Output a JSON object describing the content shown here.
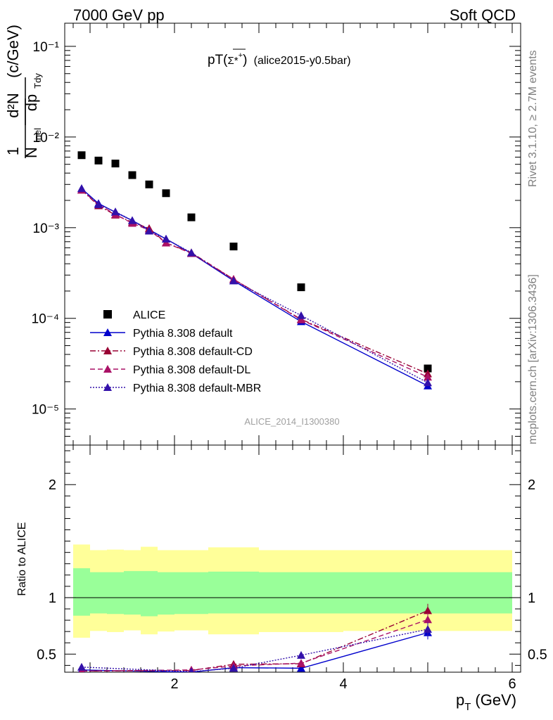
{
  "header": {
    "left": "7000 GeV pp",
    "right": "Soft QCD"
  },
  "side_labels": {
    "rivet": "Rivet 3.1.10, ≥ 2.7M events",
    "mcplots": "mcplots.cern.ch [arXiv:1306.3436]"
  },
  "chart_data": [
    {
      "type": "scatter",
      "panel": "main",
      "title_main": "pT(",
      "title_particle": "Σ*",
      "title_sup": "+",
      "title_close": ")",
      "title_extra": "(alice2015-y0.5bar)",
      "watermark": "ALICE_2014_I1300380",
      "ylabel": "1/N_inel d²N/dp_T dy (c/GeV)",
      "ylabel_parts": {
        "one": "1",
        "n": "N",
        "inel": "inel",
        "d2n": "d²N",
        "dp": "dp",
        "tdy": "Tdy",
        "unit": "(c/GeV)"
      },
      "yscale": "log",
      "ylim": [
        4e-06,
        0.18
      ],
      "xlim": [
        0.7,
        6.1
      ],
      "y_tick_labels": [
        "10⁻⁵",
        "10⁻⁴",
        "10⁻³",
        "10⁻²",
        "10⁻¹"
      ],
      "legend_position": "lower-left",
      "series": [
        {
          "name": "ALICE",
          "color": "#000000",
          "marker": "square",
          "line": "none",
          "x": [
            0.9,
            1.1,
            1.3,
            1.5,
            1.7,
            1.9,
            2.2,
            2.7,
            3.5,
            5.0
          ],
          "y": [
            0.0063,
            0.0055,
            0.0051,
            0.0038,
            0.003,
            0.0024,
            0.0013,
            0.00062,
            0.00022,
            2.8e-05
          ]
        },
        {
          "name": "Pythia 8.308 default",
          "color": "#0000cc",
          "marker": "triangle",
          "line": "solid",
          "x": [
            0.9,
            1.1,
            1.3,
            1.5,
            1.7,
            1.9,
            2.2,
            2.7,
            3.5,
            5.0
          ],
          "y": [
            0.0027,
            0.00185,
            0.00148,
            0.0012,
            0.00095,
            0.00075,
            0.00052,
            0.00026,
            9.2e-05,
            1.8e-05
          ]
        },
        {
          "name": "Pythia 8.308 default-CD",
          "color": "#990033",
          "marker": "triangle",
          "line": "dashdot",
          "x": [
            0.9,
            1.1,
            1.3,
            1.5,
            1.7,
            1.9,
            2.2,
            2.7,
            3.5,
            5.0
          ],
          "y": [
            0.0026,
            0.00175,
            0.00138,
            0.00115,
            0.00098,
            0.00068,
            0.00053,
            0.00027,
            9.75e-05,
            2.45e-05
          ]
        },
        {
          "name": "Pythia 8.308 default-DL",
          "color": "#aa1166",
          "marker": "triangle",
          "line": "dashed",
          "x": [
            0.9,
            1.1,
            1.3,
            1.5,
            1.7,
            1.9,
            2.2,
            2.7,
            3.5,
            5.0
          ],
          "y": [
            0.0026,
            0.0018,
            0.0014,
            0.00112,
            0.00094,
            0.00068,
            0.00052,
            0.00027,
            9.65e-05,
            2.25e-05
          ]
        },
        {
          "name": "Pythia 8.308 default-MBR",
          "color": "#3311aa",
          "marker": "triangle",
          "line": "dotted",
          "x": [
            0.9,
            1.1,
            1.3,
            1.5,
            1.7,
            1.9,
            2.2,
            2.7,
            3.5,
            5.0
          ],
          "y": [
            0.0027,
            0.0018,
            0.0015,
            0.0012,
            0.00092,
            0.00075,
            0.00053,
            0.00026,
            0.0001075,
            1.95e-05
          ]
        }
      ]
    },
    {
      "type": "line",
      "panel": "ratio",
      "ylabel": "Ratio to ALICE",
      "xlabel_main": "p",
      "xlabel_sub": "T",
      "xlabel_unit": "(GeV)",
      "ylim": [
        0.34,
        2.35
      ],
      "xlim": [
        0.7,
        6.1
      ],
      "x_ticks": [
        2,
        4,
        6
      ],
      "x_tick_labels": [
        "2",
        "4",
        "6"
      ],
      "y_ticks": [
        0.5,
        1,
        2
      ],
      "y_tick_labels": [
        "0.5",
        "1",
        "2"
      ],
      "bands": {
        "edges": [
          0.8,
          1.0,
          1.2,
          1.4,
          1.6,
          1.8,
          2.0,
          2.4,
          3.0,
          4.0,
          6.0
        ],
        "green_low": [
          0.84,
          0.86,
          0.855,
          0.85,
          0.835,
          0.85,
          0.855,
          0.86,
          0.86,
          0.86
        ],
        "green_high": [
          1.26,
          1.225,
          1.225,
          1.235,
          1.235,
          1.225,
          1.225,
          1.23,
          1.225,
          1.225
        ],
        "yellow_low": [
          0.645,
          0.705,
          0.695,
          0.71,
          0.675,
          0.7,
          0.71,
          0.675,
          0.695,
          0.705
        ],
        "yellow_high": [
          1.47,
          1.42,
          1.425,
          1.42,
          1.45,
          1.42,
          1.42,
          1.445,
          1.42,
          1.42
        ],
        "green_color": "#99ff99",
        "yellow_color": "#ffff99"
      },
      "series": [
        {
          "name": "Pythia 8.308 default",
          "color": "#0000cc",
          "line": "solid",
          "x": [
            0.9,
            2.2,
            2.7,
            3.5,
            5.0
          ],
          "y": [
            0.36,
            0.34,
            0.38,
            0.375,
            0.69
          ],
          "err": [
            0.01,
            0.02,
            0.02,
            0.03,
            0.06
          ]
        },
        {
          "name": "Pythia 8.308 default-CD",
          "color": "#990033",
          "line": "dashdot",
          "x": [
            0.9,
            2.2,
            2.7,
            3.5,
            5.0
          ],
          "y": [
            0.35,
            0.355,
            0.41,
            0.415,
            0.885
          ],
          "err": [
            0.01,
            0.02,
            0.03,
            0.03,
            0.06
          ]
        },
        {
          "name": "Pythia 8.308 default-DL",
          "color": "#aa1166",
          "line": "dashed",
          "x": [
            0.9,
            2.2,
            2.7,
            3.5,
            5.0
          ],
          "y": [
            0.35,
            0.36,
            0.395,
            0.42,
            0.805
          ],
          "err": [
            0.01,
            0.02,
            0.03,
            0.03,
            0.06
          ]
        },
        {
          "name": "Pythia 8.308 default-MBR",
          "color": "#3311aa",
          "line": "dotted",
          "x": [
            0.9,
            2.2,
            2.7,
            3.5,
            5.0
          ],
          "y": [
            0.385,
            0.345,
            0.375,
            0.49,
            0.72
          ],
          "err": [
            0.01,
            0.02,
            0.02,
            0.03,
            0.06
          ]
        }
      ]
    }
  ]
}
